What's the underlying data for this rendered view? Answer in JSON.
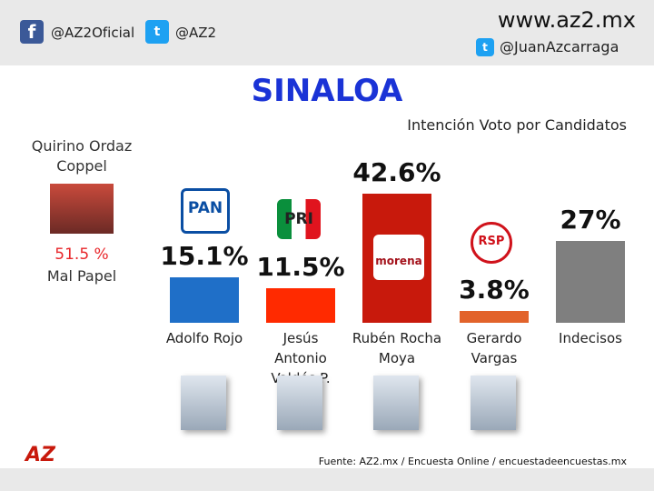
{
  "header": {
    "facebook": "@AZ2Oficial",
    "twitter": "@AZ2",
    "site": "www.az2.mx",
    "author_twitter": "@JuanAzcarraga"
  },
  "governor": {
    "name": "Quirino Ordaz Coppel",
    "rating": "51.5 %",
    "rating_label": "Mal Papel"
  },
  "chart_data": {
    "type": "bar",
    "title": "SINALOA",
    "subtitle": "Intención Voto por Candidatos",
    "categories": [
      "Adolfo Rojo",
      "Jesús Antonio Valdés P.",
      "Rubén Rocha Moya",
      "Gerardo Vargas",
      "Indecisos"
    ],
    "values": [
      15.1,
      11.5,
      42.6,
      3.8,
      27
    ],
    "value_labels": [
      "15.1%",
      "11.5%",
      "42.6%",
      "3.8%",
      "27%"
    ],
    "colors": [
      "#1f6fc8",
      "#ff2a00",
      "#c8190c",
      "#e2632b",
      "#7f7f7f"
    ],
    "party_logos": [
      "PAN",
      "PRI",
      "morena",
      "RSP",
      null
    ]
  },
  "footer": {
    "source": "Fuente: AZ2.mx  / Encuesta Online / encuestadeencuestas.mx"
  }
}
